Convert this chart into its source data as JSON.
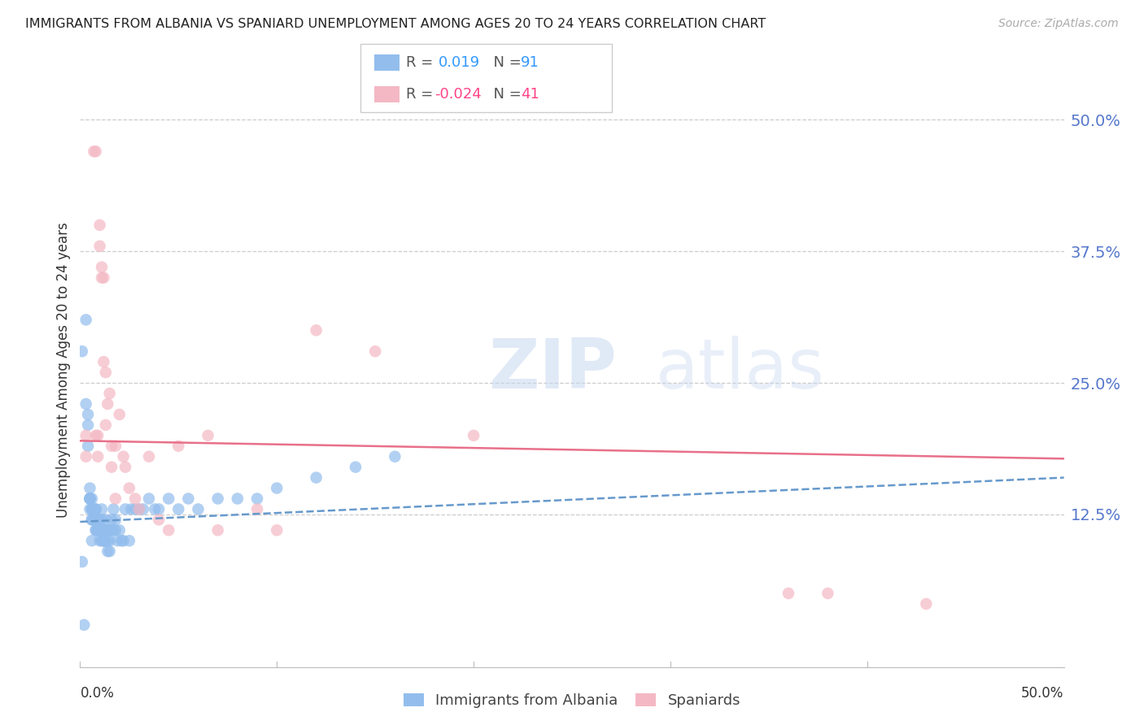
{
  "title": "IMMIGRANTS FROM ALBANIA VS SPANIARD UNEMPLOYMENT AMONG AGES 20 TO 24 YEARS CORRELATION CHART",
  "source": "Source: ZipAtlas.com",
  "ylabel": "Unemployment Among Ages 20 to 24 years",
  "ytick_labels": [
    "50.0%",
    "37.5%",
    "25.0%",
    "12.5%"
  ],
  "ytick_values": [
    0.5,
    0.375,
    0.25,
    0.125
  ],
  "xlim": [
    0.0,
    0.5
  ],
  "ylim": [
    -0.02,
    0.545
  ],
  "color_blue": "#92BDED",
  "color_pink": "#F4B8C4",
  "line_blue": "#6699CC",
  "line_pink": "#E8708A",
  "watermark_zip": "ZIP",
  "watermark_atlas": "atlas",
  "albania_x": [
    0.001,
    0.002,
    0.003,
    0.003,
    0.004,
    0.004,
    0.004,
    0.005,
    0.005,
    0.005,
    0.005,
    0.005,
    0.005,
    0.006,
    0.006,
    0.006,
    0.006,
    0.006,
    0.006,
    0.007,
    0.007,
    0.007,
    0.007,
    0.007,
    0.007,
    0.008,
    0.008,
    0.008,
    0.008,
    0.008,
    0.008,
    0.009,
    0.009,
    0.009,
    0.009,
    0.009,
    0.01,
    0.01,
    0.01,
    0.01,
    0.01,
    0.01,
    0.011,
    0.011,
    0.011,
    0.011,
    0.012,
    0.012,
    0.012,
    0.012,
    0.013,
    0.013,
    0.013,
    0.013,
    0.014,
    0.014,
    0.015,
    0.015,
    0.015,
    0.015,
    0.016,
    0.016,
    0.017,
    0.017,
    0.018,
    0.018,
    0.019,
    0.02,
    0.021,
    0.022,
    0.023,
    0.025,
    0.026,
    0.028,
    0.03,
    0.032,
    0.035,
    0.038,
    0.04,
    0.045,
    0.05,
    0.055,
    0.06,
    0.07,
    0.08,
    0.09,
    0.1,
    0.12,
    0.14,
    0.16,
    0.001
  ],
  "albania_y": [
    0.28,
    0.02,
    0.31,
    0.23,
    0.21,
    0.22,
    0.19,
    0.14,
    0.15,
    0.14,
    0.13,
    0.14,
    0.14,
    0.14,
    0.13,
    0.13,
    0.12,
    0.12,
    0.1,
    0.13,
    0.13,
    0.12,
    0.12,
    0.12,
    0.12,
    0.13,
    0.13,
    0.12,
    0.12,
    0.11,
    0.11,
    0.12,
    0.11,
    0.11,
    0.11,
    0.12,
    0.11,
    0.11,
    0.1,
    0.11,
    0.12,
    0.11,
    0.13,
    0.12,
    0.11,
    0.1,
    0.1,
    0.11,
    0.1,
    0.1,
    0.11,
    0.1,
    0.11,
    0.12,
    0.1,
    0.09,
    0.11,
    0.11,
    0.1,
    0.09,
    0.11,
    0.12,
    0.11,
    0.13,
    0.12,
    0.11,
    0.1,
    0.11,
    0.1,
    0.1,
    0.13,
    0.1,
    0.13,
    0.13,
    0.13,
    0.13,
    0.14,
    0.13,
    0.13,
    0.14,
    0.13,
    0.14,
    0.13,
    0.14,
    0.14,
    0.14,
    0.15,
    0.16,
    0.17,
    0.18,
    0.08
  ],
  "spaniard_x": [
    0.003,
    0.003,
    0.007,
    0.008,
    0.008,
    0.009,
    0.009,
    0.01,
    0.01,
    0.011,
    0.011,
    0.012,
    0.012,
    0.013,
    0.013,
    0.014,
    0.015,
    0.016,
    0.016,
    0.018,
    0.018,
    0.02,
    0.022,
    0.023,
    0.025,
    0.028,
    0.03,
    0.035,
    0.04,
    0.045,
    0.05,
    0.065,
    0.07,
    0.09,
    0.1,
    0.12,
    0.15,
    0.2,
    0.36,
    0.38,
    0.43
  ],
  "spaniard_y": [
    0.2,
    0.18,
    0.47,
    0.47,
    0.2,
    0.2,
    0.18,
    0.38,
    0.4,
    0.36,
    0.35,
    0.35,
    0.27,
    0.26,
    0.21,
    0.23,
    0.24,
    0.19,
    0.17,
    0.19,
    0.14,
    0.22,
    0.18,
    0.17,
    0.15,
    0.14,
    0.13,
    0.18,
    0.12,
    0.11,
    0.19,
    0.2,
    0.11,
    0.13,
    0.11,
    0.3,
    0.28,
    0.2,
    0.05,
    0.05,
    0.04
  ],
  "alb_trend_x": [
    0.0,
    0.5
  ],
  "alb_trend_y": [
    0.118,
    0.16
  ],
  "span_trend_x": [
    0.0,
    0.5
  ],
  "span_trend_y": [
    0.195,
    0.178
  ]
}
